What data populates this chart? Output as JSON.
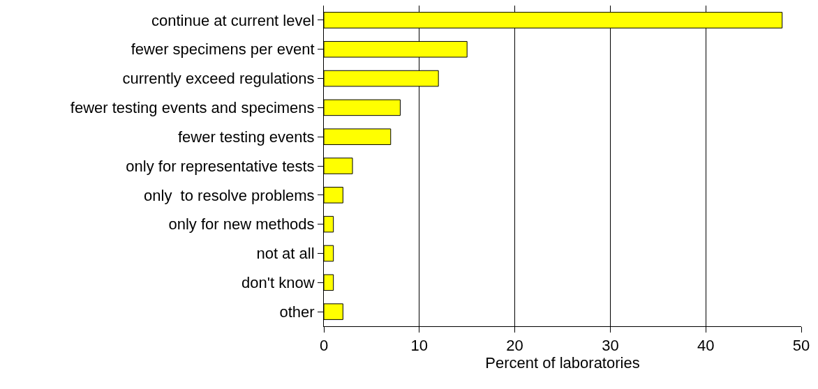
{
  "chart_data": {
    "type": "bar",
    "orientation": "horizontal",
    "xlabel": "Percent of laboratories",
    "categories": [
      "continue at current level",
      "fewer specimens per event",
      "currently exceed regulations",
      "fewer testing events and specimens",
      "fewer testing events",
      "only for representative tests",
      "only  to resolve problems",
      "only for new methods",
      "not at all",
      "don't know",
      "other"
    ],
    "values": [
      48,
      15,
      12,
      8,
      7,
      3,
      2,
      1,
      1,
      1,
      2
    ],
    "color": "#ffff00",
    "xlim": [
      0,
      50
    ],
    "xticks": [
      0,
      10,
      20,
      30,
      40,
      50
    ],
    "grid": "x"
  }
}
